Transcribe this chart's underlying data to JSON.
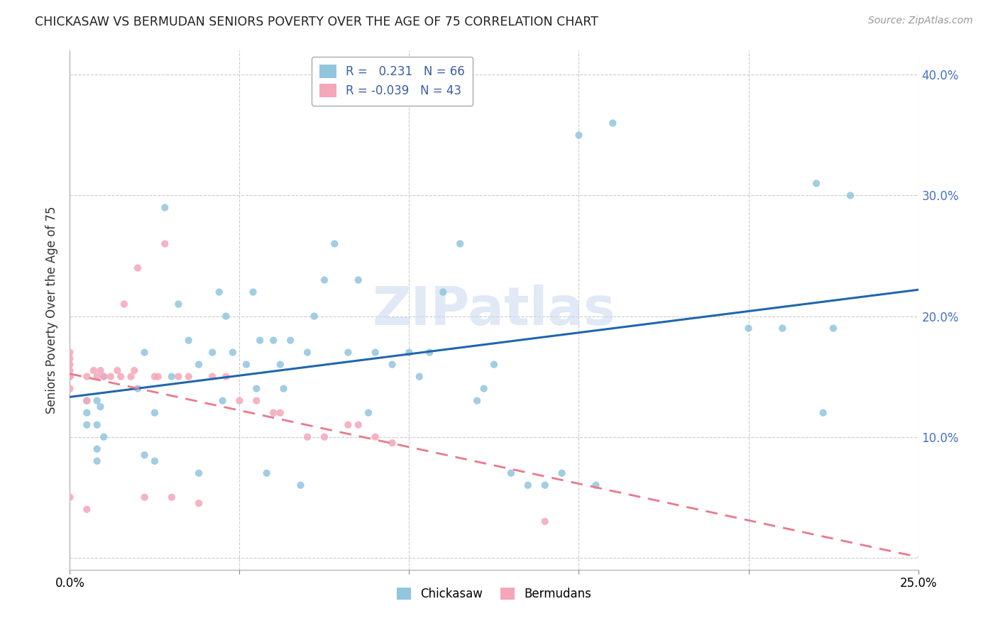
{
  "title": "CHICKASAW VS BERMUDAN SENIORS POVERTY OVER THE AGE OF 75 CORRELATION CHART",
  "source": "Source: ZipAtlas.com",
  "ylabel": "Seniors Poverty Over the Age of 75",
  "xlim": [
    0.0,
    0.25
  ],
  "ylim": [
    -0.01,
    0.42
  ],
  "chickasaw_color": "#92c5de",
  "bermudans_color": "#f4a7b9",
  "trendline_chickasaw_color": "#2166ac",
  "trendline_bermudans_color": "#e87a8a",
  "watermark": "ZIPatlas",
  "chickasaw_points_x": [
    0.005,
    0.005,
    0.005,
    0.008,
    0.008,
    0.008,
    0.008,
    0.009,
    0.01,
    0.01,
    0.02,
    0.022,
    0.022,
    0.025,
    0.025,
    0.028,
    0.03,
    0.032,
    0.035,
    0.038,
    0.038,
    0.042,
    0.044,
    0.045,
    0.046,
    0.048,
    0.052,
    0.054,
    0.055,
    0.056,
    0.058,
    0.06,
    0.062,
    0.063,
    0.065,
    0.068,
    0.07,
    0.072,
    0.075,
    0.078,
    0.082,
    0.085,
    0.088,
    0.09,
    0.095,
    0.1,
    0.103,
    0.106,
    0.11,
    0.115,
    0.12,
    0.122,
    0.125,
    0.13,
    0.135,
    0.14,
    0.145,
    0.15,
    0.155,
    0.16,
    0.2,
    0.21,
    0.22,
    0.222,
    0.225,
    0.23
  ],
  "chickasaw_points_y": [
    0.13,
    0.12,
    0.11,
    0.13,
    0.11,
    0.09,
    0.08,
    0.125,
    0.15,
    0.1,
    0.14,
    0.17,
    0.085,
    0.12,
    0.08,
    0.29,
    0.15,
    0.21,
    0.18,
    0.16,
    0.07,
    0.17,
    0.22,
    0.13,
    0.2,
    0.17,
    0.16,
    0.22,
    0.14,
    0.18,
    0.07,
    0.18,
    0.16,
    0.14,
    0.18,
    0.06,
    0.17,
    0.2,
    0.23,
    0.26,
    0.17,
    0.23,
    0.12,
    0.17,
    0.16,
    0.17,
    0.15,
    0.17,
    0.22,
    0.26,
    0.13,
    0.14,
    0.16,
    0.07,
    0.06,
    0.06,
    0.07,
    0.35,
    0.06,
    0.36,
    0.19,
    0.19,
    0.31,
    0.12,
    0.19,
    0.3
  ],
  "bermudans_points_x": [
    0.0,
    0.0,
    0.0,
    0.0,
    0.0,
    0.0,
    0.0,
    0.0,
    0.005,
    0.005,
    0.005,
    0.007,
    0.008,
    0.009,
    0.01,
    0.012,
    0.014,
    0.015,
    0.016,
    0.018,
    0.019,
    0.02,
    0.022,
    0.025,
    0.026,
    0.028,
    0.03,
    0.032,
    0.035,
    0.038,
    0.042,
    0.046,
    0.05,
    0.055,
    0.06,
    0.062,
    0.07,
    0.075,
    0.082,
    0.085,
    0.09,
    0.095,
    0.14
  ],
  "bermudans_points_y": [
    0.05,
    0.14,
    0.15,
    0.15,
    0.155,
    0.16,
    0.165,
    0.17,
    0.04,
    0.13,
    0.15,
    0.155,
    0.15,
    0.155,
    0.15,
    0.15,
    0.155,
    0.15,
    0.21,
    0.15,
    0.155,
    0.24,
    0.05,
    0.15,
    0.15,
    0.26,
    0.05,
    0.15,
    0.15,
    0.045,
    0.15,
    0.15,
    0.13,
    0.13,
    0.12,
    0.12,
    0.1,
    0.1,
    0.11,
    0.11,
    0.1,
    0.095,
    0.03
  ]
}
